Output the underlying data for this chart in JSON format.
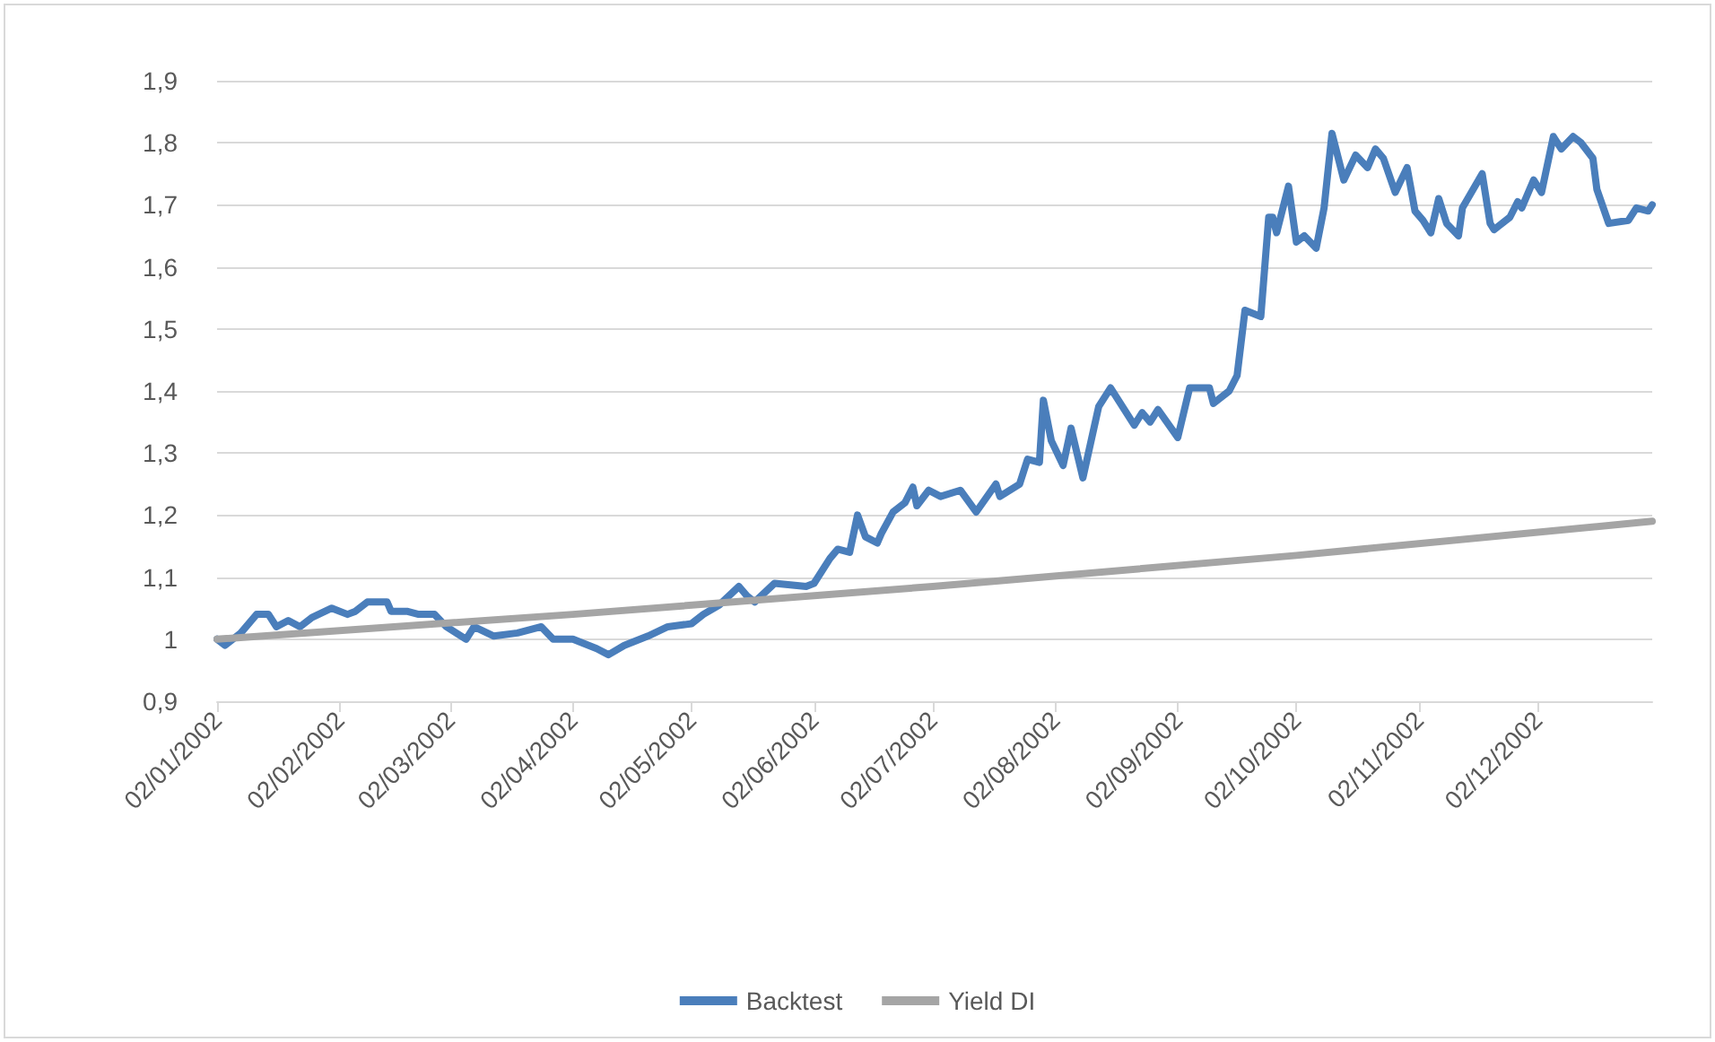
{
  "chart_data": {
    "type": "line",
    "xlim": [
      "2002-01-02",
      "2002-12-31"
    ],
    "ylim": [
      0.9,
      1.9
    ],
    "xticks": [
      {
        "value": "2002-01-02",
        "label": "02/01/2002"
      },
      {
        "value": "2002-02-02",
        "label": "02/02/2002"
      },
      {
        "value": "2002-03-02",
        "label": "02/03/2002"
      },
      {
        "value": "2002-04-02",
        "label": "02/04/2002"
      },
      {
        "value": "2002-05-02",
        "label": "02/05/2002"
      },
      {
        "value": "2002-06-02",
        "label": "02/06/2002"
      },
      {
        "value": "2002-07-02",
        "label": "02/07/2002"
      },
      {
        "value": "2002-08-02",
        "label": "02/08/2002"
      },
      {
        "value": "2002-09-02",
        "label": "02/09/2002"
      },
      {
        "value": "2002-10-02",
        "label": "02/10/2002"
      },
      {
        "value": "2002-11-02",
        "label": "02/11/2002"
      },
      {
        "value": "2002-12-02",
        "label": "02/12/2002"
      }
    ],
    "yticks": [
      {
        "value": 0.9,
        "label": "0,9"
      },
      1,
      {
        "value": 1.1,
        "label": "1,1"
      },
      {
        "value": 1.2,
        "label": "1,2"
      },
      {
        "value": 1.3,
        "label": "1,3"
      },
      {
        "value": 1.4,
        "label": "1,4"
      },
      {
        "value": 1.5,
        "label": "1,5"
      },
      {
        "value": 1.6,
        "label": "1,6"
      },
      {
        "value": 1.7,
        "label": "1,7"
      },
      {
        "value": 1.8,
        "label": "1,8"
      },
      {
        "value": 1.9,
        "label": "1,9"
      }
    ],
    "grid": "y",
    "legend": "bottom",
    "marker": "none",
    "line_style": "solid",
    "series": [
      {
        "name": "Backtest",
        "color": "#4a7ebb",
        "x": [
          "2002-01-02",
          "2002-01-04",
          "2002-01-08",
          "2002-01-12",
          "2002-01-15",
          "2002-01-17",
          "2002-01-20",
          "2002-01-23",
          "2002-01-26",
          "2002-01-31",
          "2002-02-04",
          "2002-02-06",
          "2002-02-09",
          "2002-02-14",
          "2002-02-15",
          "2002-02-19",
          "2002-02-22",
          "2002-02-26",
          "2002-03-01",
          "2002-03-06",
          "2002-03-08",
          "2002-03-13",
          "2002-03-19",
          "2002-03-25",
          "2002-03-28",
          "2002-04-02",
          "2002-04-08",
          "2002-04-11",
          "2002-04-15",
          "2002-04-21",
          "2002-04-26",
          "2002-05-02",
          "2002-05-05",
          "2002-05-09",
          "2002-05-14",
          "2002-05-16",
          "2002-05-18",
          "2002-05-23",
          "2002-05-31",
          "2002-06-02",
          "2002-06-06",
          "2002-06-08",
          "2002-06-11",
          "2002-06-13",
          "2002-06-15",
          "2002-06-18",
          "2002-06-19",
          "2002-06-22",
          "2002-06-25",
          "2002-06-27",
          "2002-06-28",
          "2002-07-01",
          "2002-07-04",
          "2002-07-09",
          "2002-07-13",
          "2002-07-18",
          "2002-07-19",
          "2002-07-24",
          "2002-07-26",
          "2002-07-29",
          "2002-07-30",
          "2002-08-01",
          "2002-08-04",
          "2002-08-06",
          "2002-08-09",
          "2002-08-13",
          "2002-08-16",
          "2002-08-22",
          "2002-08-24",
          "2002-08-26",
          "2002-08-28",
          "2002-09-02",
          "2002-09-05",
          "2002-09-10",
          "2002-09-11",
          "2002-09-15",
          "2002-09-17",
          "2002-09-19",
          "2002-09-23",
          "2002-09-25",
          "2002-09-26",
          "2002-09-27",
          "2002-09-30",
          "2002-10-02",
          "2002-10-04",
          "2002-10-07",
          "2002-10-09",
          "2002-10-11",
          "2002-10-14",
          "2002-10-17",
          "2002-10-20",
          "2002-10-22",
          "2002-10-24",
          "2002-10-27",
          "2002-10-30",
          "2002-11-01",
          "2002-11-03",
          "2002-11-05",
          "2002-11-07",
          "2002-11-09",
          "2002-11-12",
          "2002-11-13",
          "2002-11-18",
          "2002-11-20",
          "2002-11-21",
          "2002-11-25",
          "2002-11-27",
          "2002-11-28",
          "2002-12-01",
          "2002-12-03",
          "2002-12-06",
          "2002-12-08",
          "2002-12-11",
          "2002-12-13",
          "2002-12-16",
          "2002-12-17",
          "2002-12-20",
          "2002-12-25",
          "2002-12-27",
          "2002-12-30",
          "2002-12-31"
        ],
        "values": [
          1.0,
          0.99,
          1.01,
          1.04,
          1.04,
          1.02,
          1.03,
          1.02,
          1.035,
          1.05,
          1.04,
          1.045,
          1.06,
          1.06,
          1.045,
          1.045,
          1.04,
          1.04,
          1.02,
          1.0,
          1.02,
          1.005,
          1.01,
          1.02,
          1.0,
          1.0,
          0.985,
          0.975,
          0.99,
          1.005,
          1.02,
          1.025,
          1.04,
          1.055,
          1.085,
          1.07,
          1.06,
          1.09,
          1.085,
          1.09,
          1.13,
          1.145,
          1.14,
          1.2,
          1.165,
          1.155,
          1.17,
          1.205,
          1.22,
          1.245,
          1.215,
          1.24,
          1.23,
          1.24,
          1.205,
          1.25,
          1.23,
          1.25,
          1.29,
          1.285,
          1.385,
          1.32,
          1.28,
          1.34,
          1.26,
          1.375,
          1.405,
          1.345,
          1.365,
          1.35,
          1.37,
          1.325,
          1.405,
          1.405,
          1.38,
          1.4,
          1.425,
          1.53,
          1.52,
          1.68,
          1.68,
          1.655,
          1.73,
          1.64,
          1.65,
          1.63,
          1.695,
          1.815,
          1.74,
          1.78,
          1.76,
          1.79,
          1.775,
          1.72,
          1.76,
          1.69,
          1.675,
          1.655,
          1.71,
          1.67,
          1.65,
          1.695,
          1.75,
          1.67,
          1.66,
          1.68,
          1.705,
          1.695,
          1.74,
          1.72,
          1.81,
          1.79,
          1.81,
          1.8,
          1.775,
          1.725,
          1.67,
          1.675,
          1.695,
          1.69,
          1.7
        ]
      },
      {
        "name": "Yield DI",
        "color": "#a5a5a5",
        "x": [
          "2002-01-02",
          "2002-04-02",
          "2002-07-02",
          "2002-10-02",
          "2002-12-31"
        ],
        "values": [
          1.0,
          1.04,
          1.085,
          1.135,
          1.19
        ]
      }
    ]
  }
}
